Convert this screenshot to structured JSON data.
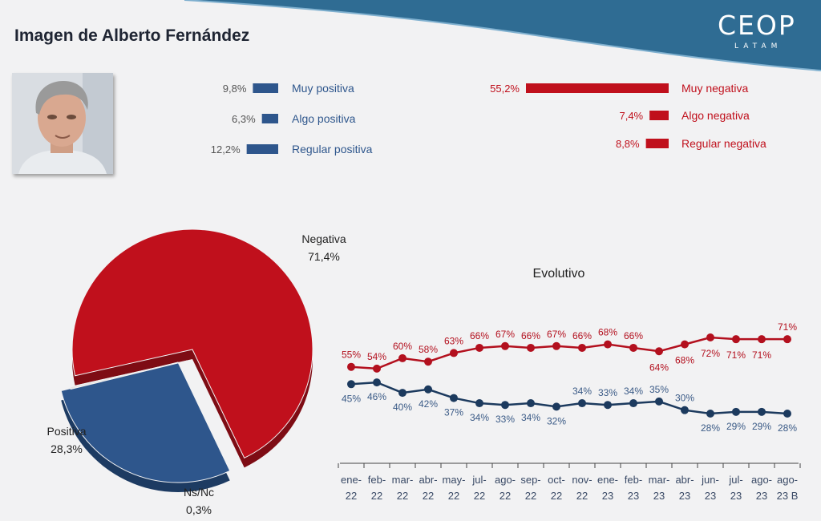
{
  "header": {
    "title": "Imagen de Alberto Fernández",
    "logo_text": "CEOP",
    "logo_sub": "LATAM"
  },
  "colors": {
    "negative": "#c0101c",
    "positive": "#2e568c",
    "evo_negative": "#b3101e",
    "evo_positive": "#1c3a5e",
    "banner": "#2f6c93"
  },
  "chart_data": [
    {
      "type": "bar",
      "title": "",
      "categories": [
        "Muy positiva",
        "Algo positiva",
        "Regular positiva",
        "Muy negativa",
        "Algo negativa",
        "Regular negativa"
      ],
      "values": [
        9.8,
        6.3,
        12.2,
        55.2,
        7.4,
        8.8
      ],
      "labels": [
        "9,8%",
        "6,3%",
        "12,2%",
        "55,2%",
        "7,4%",
        "8,8%"
      ]
    },
    {
      "type": "pie",
      "title": "",
      "categories": [
        "Negativa",
        "Positiva",
        "Ns/Nc"
      ],
      "values": [
        71.4,
        28.3,
        0.3
      ],
      "labels": [
        "71,4%",
        "28,3%",
        "0,3%"
      ]
    },
    {
      "type": "line",
      "title": "Evolutivo",
      "categories": [
        "ene-22",
        "feb-22",
        "mar-22",
        "abr-22",
        "may-22",
        "jul-22",
        "ago-22",
        "sep-22",
        "oct-22",
        "nov-22",
        "ene-23",
        "feb-23",
        "mar-23",
        "abr-23",
        "jun-23",
        "jul-23",
        "ago-23",
        "ago-23 B"
      ],
      "x_labels": [
        [
          "ene-",
          "22"
        ],
        [
          "feb-",
          "22"
        ],
        [
          "mar-",
          "22"
        ],
        [
          "abr-",
          "22"
        ],
        [
          "may-",
          "22"
        ],
        [
          "jul-",
          "22"
        ],
        [
          "ago-",
          "22"
        ],
        [
          "sep-",
          "22"
        ],
        [
          "oct-",
          "22"
        ],
        [
          "nov-",
          "22"
        ],
        [
          "ene-",
          "23"
        ],
        [
          "feb-",
          "23"
        ],
        [
          "mar-",
          "23"
        ],
        [
          "abr-",
          "23"
        ],
        [
          "jun-",
          "23"
        ],
        [
          "jul-",
          "23"
        ],
        [
          "ago-",
          "23"
        ],
        [
          "ago-",
          "23 B"
        ]
      ],
      "ylim": [
        20,
        80
      ],
      "series": [
        {
          "values": [
            55,
            54,
            60,
            58,
            63,
            66,
            67,
            66,
            67,
            66,
            68,
            66,
            64,
            68,
            72,
            71,
            71,
            71
          ]
        },
        {
          "values": [
            45,
            46,
            40,
            42,
            37,
            34,
            33,
            34,
            32,
            34,
            33,
            34,
            35,
            30,
            28,
            29,
            29,
            28
          ]
        }
      ]
    }
  ]
}
